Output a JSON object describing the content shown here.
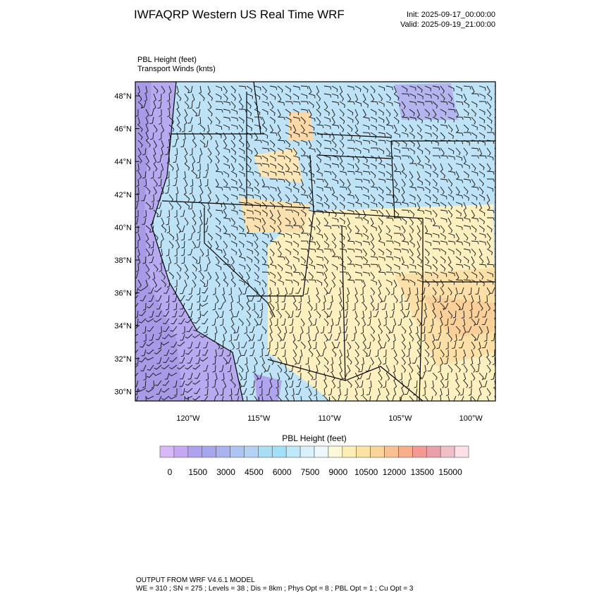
{
  "header": {
    "title": "IWFAQRP Western US Real Time WRF",
    "init": "Init: 2025-09-17_00:00:00",
    "valid": "Valid: 2025-09-19_21:00:00"
  },
  "map": {
    "field_label": "PBL Height   (feet)",
    "wind_label": "Transport Winds   (knts)",
    "lat_labels": [
      "48°N",
      "46°N",
      "44°N",
      "42°N",
      "40°N",
      "38°N",
      "36°N",
      "34°N",
      "32°N",
      "30°N"
    ],
    "lon_labels": [
      "120°W",
      "115°W",
      "110°W",
      "105°W",
      "100°W"
    ]
  },
  "colorbar": {
    "title": "PBL Height  (feet)",
    "labels": [
      "0",
      "1500",
      "3000",
      "4500",
      "6000",
      "7500",
      "9000",
      "10500",
      "12000",
      "13500",
      "15000"
    ],
    "colors": [
      "#d9b8f7",
      "#c4a8f5",
      "#b0a0f0",
      "#a6a6ee",
      "#a9b4ee",
      "#aec4f2",
      "#b3d2f5",
      "#a8dcf7",
      "#a3e0f8",
      "#bee9fa",
      "#d8f1fb",
      "#ecf8fc",
      "#fdf8d8",
      "#fdeeb3",
      "#fce3a3",
      "#fbd49a",
      "#f9c191",
      "#f8ad8b",
      "#f49a94",
      "#eaa0a8",
      "#f0c0c8",
      "#fde0e6"
    ]
  },
  "footer": {
    "line1": "OUTPUT FROM WRF V4.6.1 MODEL",
    "line2": "WE = 310 ; SN = 275 ; Levels = 38 ; Dis = 8km ; Phys Opt = 8 ; PBL Opt = 1 ; Cu Opt = 3"
  }
}
